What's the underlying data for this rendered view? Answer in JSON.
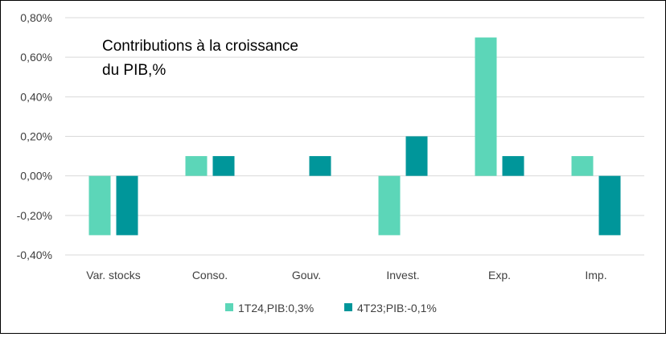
{
  "chart_data": {
    "type": "bar",
    "title_lines": [
      "Contributions à la croissance",
      "du PIB,%"
    ],
    "categories": [
      "Var. stocks",
      "Conso.",
      "Gouv.",
      "Invest.",
      "Exp.",
      "Imp."
    ],
    "series": [
      {
        "name": "1T24,PIB:0,3%",
        "color": "#5cd6b8",
        "values": [
          -0.3,
          0.1,
          0.0,
          -0.3,
          0.7,
          0.1
        ]
      },
      {
        "name": "4T23;PIB:-0,1%",
        "color": "#00969a",
        "values": [
          -0.3,
          0.1,
          0.1,
          0.2,
          0.1,
          -0.3
        ]
      }
    ],
    "ylim": [
      -0.4,
      0.8
    ],
    "yticks": [
      0.8,
      0.6,
      0.4,
      0.2,
      0.0,
      -0.2,
      -0.4
    ],
    "ytick_labels": [
      "0,80%",
      "0,60%",
      "0,40%",
      "0,20%",
      "0,00%",
      "-0,20%",
      "-0,40%"
    ],
    "grid": true,
    "legend_position": "bottom"
  }
}
